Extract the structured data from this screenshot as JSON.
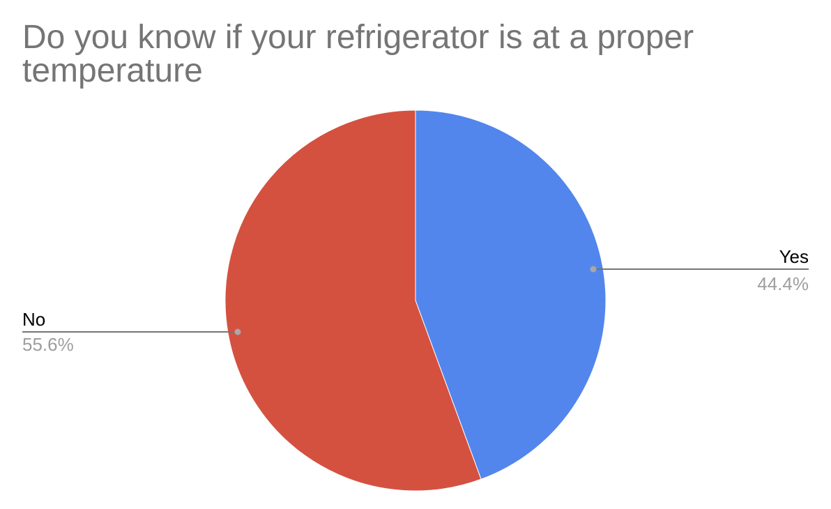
{
  "chart_data": {
    "type": "pie",
    "title": "Do you know if your refrigerator is at a proper temperature",
    "slices": [
      {
        "label": "Yes",
        "value": 44.4,
        "value_label": "44.4%",
        "color": "#5386ec"
      },
      {
        "label": "No",
        "value": 55.6,
        "value_label": "55.6%",
        "color": "#d45140"
      }
    ],
    "start_angle": "12 o'clock",
    "direction": "clockwise",
    "legend": "labels beside slices with leader lines"
  }
}
